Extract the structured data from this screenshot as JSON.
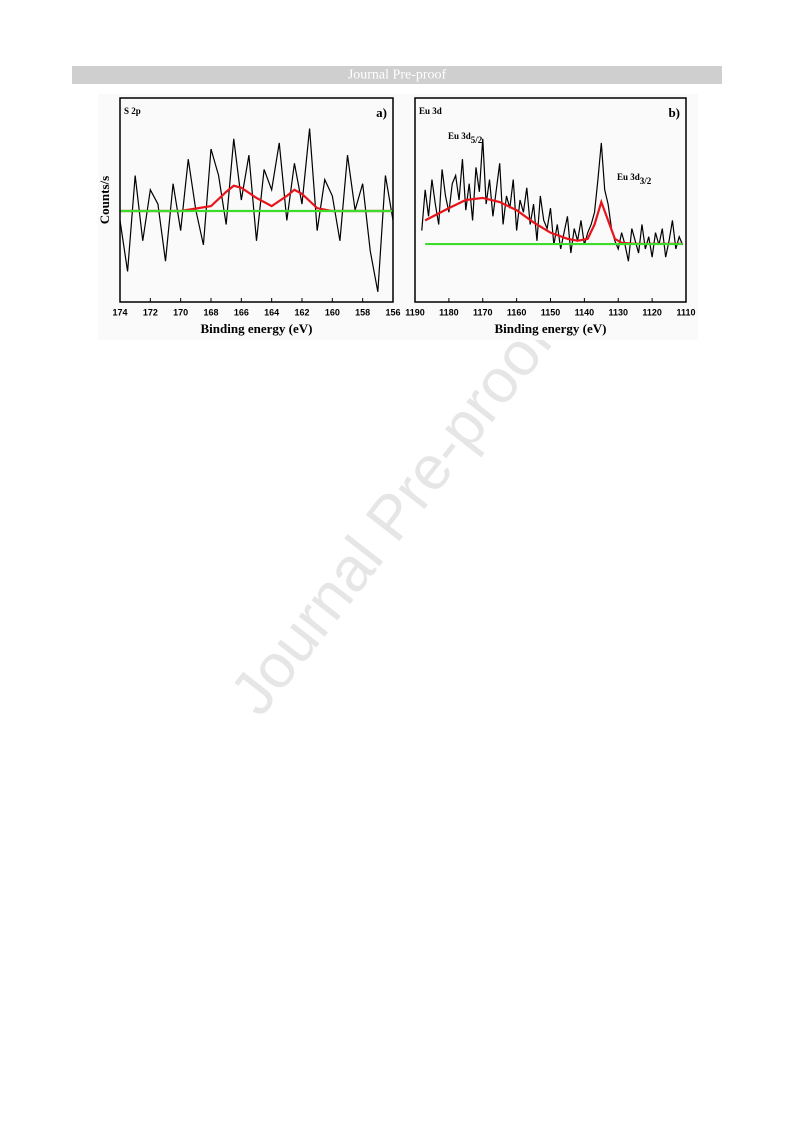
{
  "header": {
    "title": "Journal Pre-proof"
  },
  "watermark": {
    "text": "Journal Pre-proof"
  },
  "chart_data": [
    {
      "type": "line",
      "panel_label": "a)",
      "title": "S 2p",
      "x_label": "Binding energy (eV)",
      "y_label": "Counts/s",
      "xlim": [
        174,
        156
      ],
      "xticks": [
        174,
        172,
        170,
        168,
        166,
        164,
        162,
        160,
        158,
        156
      ],
      "ylim": [
        0,
        100
      ],
      "series": [
        {
          "color": "#000000",
          "x": [
            174,
            173.5,
            173,
            172.5,
            172,
            171.5,
            171,
            170.5,
            170,
            169.5,
            169,
            168.5,
            168,
            167.5,
            167,
            166.5,
            166,
            165.5,
            165,
            164.5,
            164,
            163.5,
            163,
            162.5,
            162,
            161.5,
            161,
            160.5,
            160,
            159.5,
            159,
            158.5,
            158,
            157.5,
            157,
            156.5,
            156
          ],
          "values": [
            40,
            15,
            62,
            30,
            55,
            48,
            20,
            58,
            35,
            70,
            45,
            28,
            75,
            62,
            38,
            80,
            50,
            72,
            30,
            65,
            55,
            78,
            40,
            68,
            48,
            85,
            35,
            60,
            52,
            30,
            72,
            45,
            58,
            25,
            5,
            62,
            40
          ]
        },
        {
          "color": "#e8141a",
          "x": [
            174,
            170,
            168,
            167,
            166.5,
            166,
            165,
            164,
            163,
            162.5,
            162,
            161,
            160,
            156
          ],
          "values": [
            44.6,
            44.6,
            47,
            54,
            57,
            56,
            51,
            47,
            52,
            55,
            53,
            46,
            44.6,
            44.6
          ]
        },
        {
          "color": "#3ddc2c",
          "x": [
            174,
            156
          ],
          "values": [
            44.6,
            44.6
          ]
        }
      ]
    },
    {
      "type": "line",
      "panel_label": "b)",
      "title": "Eu 3d",
      "x_label": "Binding energy (eV)",
      "annotations": [
        {
          "text": "Eu 3d",
          "sub": "5/2"
        },
        {
          "text": "Eu 3d",
          "sub": "3/2"
        }
      ],
      "xlim": [
        1190,
        1110
      ],
      "xticks": [
        1190,
        1180,
        1170,
        1160,
        1150,
        1140,
        1130,
        1120,
        1110
      ],
      "ylim": [
        0,
        100
      ],
      "series": [
        {
          "color": "#000000",
          "x": [
            1188,
            1187,
            1186,
            1185,
            1184,
            1183,
            1182,
            1181,
            1180,
            1179,
            1178,
            1177,
            1176,
            1175,
            1174,
            1173,
            1172,
            1171,
            1170,
            1169,
            1168,
            1167,
            1166,
            1165,
            1164,
            1163,
            1162,
            1161,
            1160,
            1159,
            1158,
            1157,
            1156,
            1155,
            1154,
            1153,
            1152,
            1151,
            1150,
            1149,
            1148,
            1147,
            1146,
            1145,
            1144,
            1143,
            1142,
            1141,
            1140,
            1139,
            1138,
            1137,
            1136,
            1135,
            1134,
            1133,
            1132,
            1131,
            1130,
            1129,
            1128,
            1127,
            1126,
            1125,
            1124,
            1123,
            1122,
            1121,
            1120,
            1119,
            1118,
            1117,
            1116,
            1115,
            1114,
            1113,
            1112,
            1111
          ],
          "values": [
            35,
            55,
            42,
            60,
            48,
            38,
            65,
            52,
            44,
            58,
            62,
            50,
            70,
            45,
            58,
            40,
            66,
            54,
            80,
            48,
            60,
            42,
            55,
            68,
            38,
            52,
            46,
            60,
            35,
            50,
            44,
            56,
            38,
            48,
            30,
            52,
            40,
            36,
            46,
            28,
            38,
            26,
            34,
            42,
            24,
            36,
            30,
            40,
            28,
            34,
            38,
            44,
            60,
            78,
            55,
            48,
            36,
            30,
            26,
            34,
            28,
            20,
            36,
            30,
            24,
            38,
            26,
            32,
            22,
            34,
            28,
            36,
            22,
            30,
            40,
            26,
            32,
            28
          ]
        },
        {
          "color": "#e8141a",
          "x": [
            1187,
            1180,
            1175,
            1170,
            1165,
            1160,
            1155,
            1150,
            1145,
            1142,
            1139,
            1137,
            1135,
            1133,
            1131,
            1129,
            1125,
            1111
          ],
          "values": [
            40,
            46,
            50,
            51,
            49,
            45,
            39,
            34,
            31,
            30,
            31,
            38,
            49,
            40,
            31,
            29,
            28.5,
            28.5
          ]
        },
        {
          "color": "#3ddc2c",
          "x": [
            1187,
            1111
          ],
          "values": [
            28.4,
            28.4
          ]
        }
      ]
    }
  ]
}
